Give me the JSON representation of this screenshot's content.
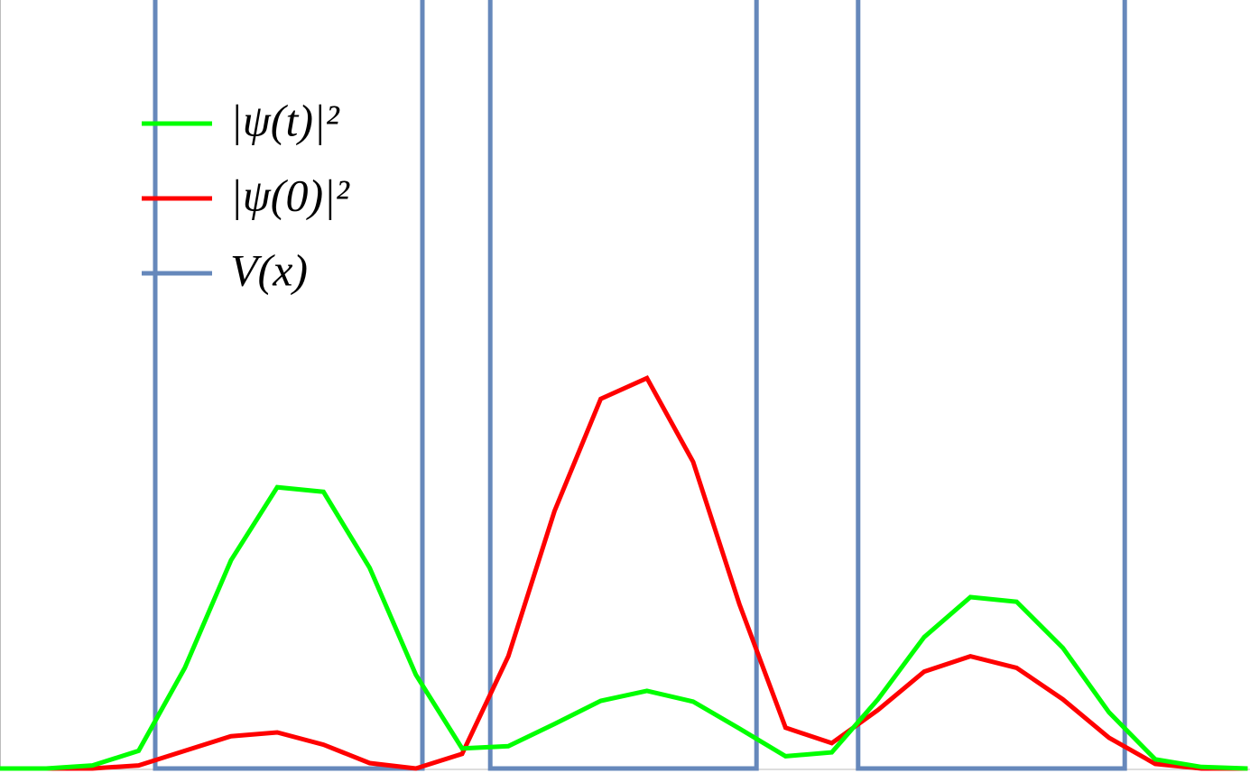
{
  "chart_data": {
    "type": "line",
    "x": [
      0,
      1,
      2,
      3,
      4,
      5,
      6,
      7,
      8,
      9,
      10,
      11,
      12,
      13,
      14,
      15,
      16,
      17,
      18,
      19,
      20,
      21,
      22,
      23,
      24,
      25,
      26,
      27
    ],
    "xlim": [
      0,
      27.05
    ],
    "ylim": [
      0,
      100
    ],
    "legend": "upper left",
    "series": [
      {
        "name": "|ψ(t)|²",
        "color": "#00ff00",
        "values": [
          0,
          0,
          0.4,
          2.3,
          13.1,
          27.1,
          36.6,
          36.0,
          26.1,
          12.2,
          2.6,
          2.9,
          5.8,
          8.8,
          10.1,
          8.7,
          5.2,
          1.6,
          2.1,
          9.0,
          17.1,
          22.3,
          21.7,
          15.7,
          7.3,
          1.2,
          0.2,
          0
        ]
      },
      {
        "name": "|ψ(0)|²",
        "color": "#ff0000",
        "values": [
          0,
          0,
          0,
          0.4,
          2.3,
          4.2,
          4.7,
          3.1,
          0.7,
          0,
          1.9,
          14.6,
          33.5,
          48.1,
          50.8,
          39.9,
          21.4,
          5.3,
          3.3,
          7.6,
          12.6,
          14.6,
          13.1,
          9.0,
          4.0,
          0.6,
          0,
          0
        ]
      },
      {
        "name": "V(x)",
        "color": "#6688bb",
        "x": [
          3.36,
          3.36,
          9.14,
          9.14,
          null,
          10.61,
          10.61,
          16.37,
          16.37,
          null,
          18.57,
          18.57,
          24.34,
          24.34
        ],
        "values": [
          100,
          0,
          0,
          100,
          null,
          100,
          0,
          0,
          100,
          null,
          100,
          0,
          0,
          100
        ]
      }
    ]
  }
}
